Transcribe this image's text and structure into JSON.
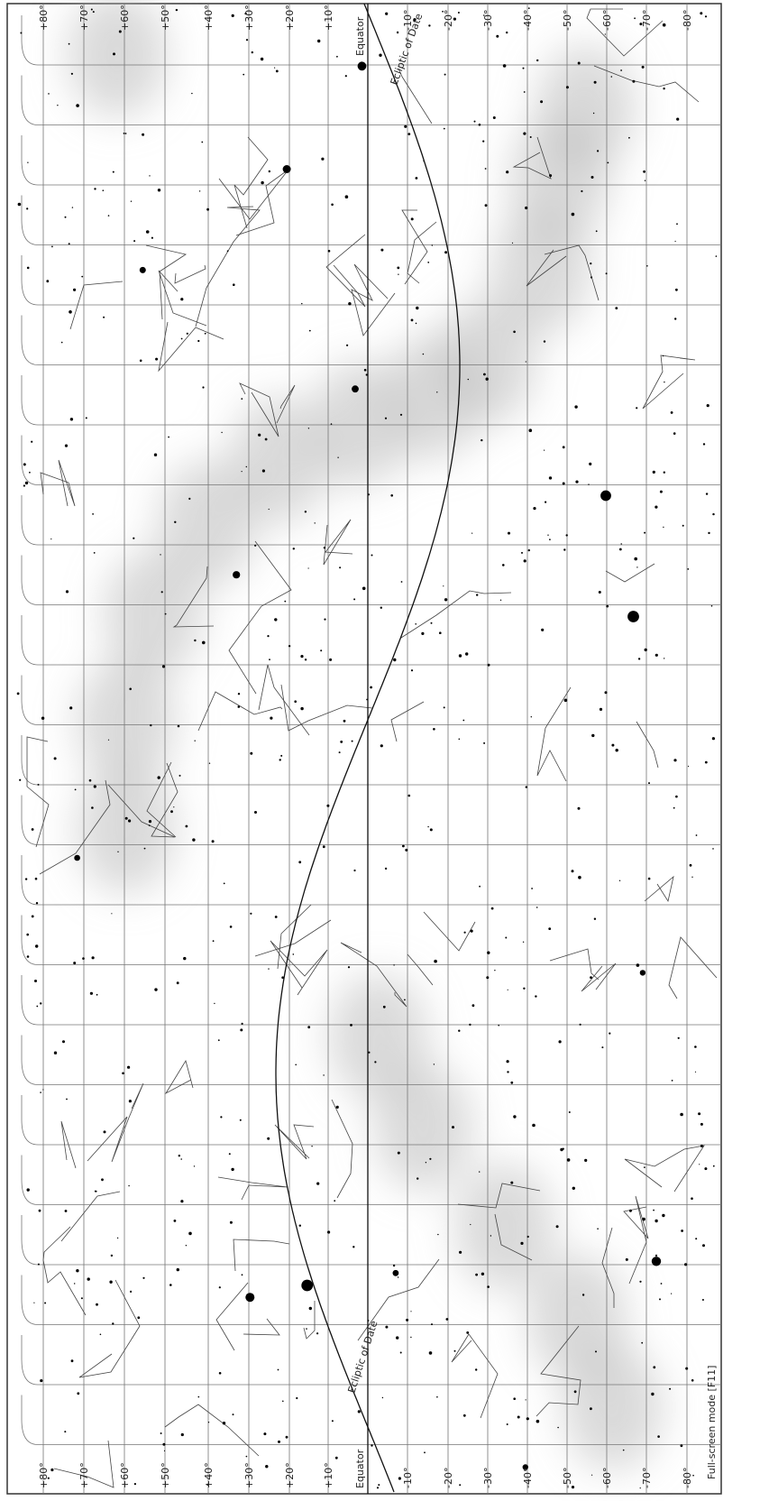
{
  "declination_labels_top": [
    "+80°",
    "+70°",
    "+60°",
    "+50°",
    "+40°",
    "+30°",
    "+20°",
    "+10°",
    "-10°",
    "-20°",
    "-30°",
    "-40°",
    "-50°",
    "-60°",
    "-70°",
    "-80°"
  ],
  "declination_labels_bottom": [
    "+80°",
    "+70°",
    "+60°",
    "+50°",
    "+40°",
    "+30°",
    "+20°",
    "+10°",
    "-10°",
    "-20°",
    "-30°",
    "-40°",
    "-50°",
    "-60°",
    "-70°",
    "-80°"
  ],
  "equator_label_top": "Equator",
  "ecliptic_label_top": "Ecliptic of Date",
  "equator_label_bottom": "Equator",
  "ecliptic_label_bottom": "Ecliptic of Date",
  "status": "Full-screen mode [F11]"
}
